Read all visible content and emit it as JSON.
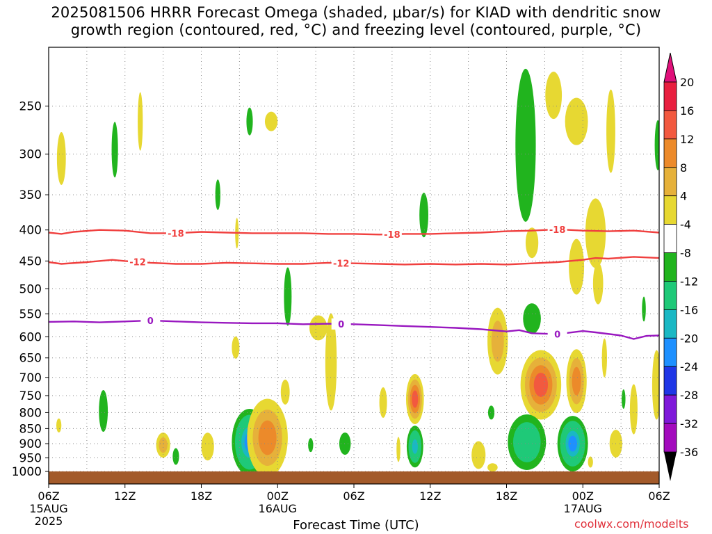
{
  "title": {
    "line1": "2025081506 HRRR Forecast Omega (shaded, μbar/s) for KIAD with dendritic snow",
    "line2": "growth region (contoured, red, °C) and freezing level (contoured, purple, °C)"
  },
  "credit": "coolwx.com/modelts",
  "chart_data": {
    "type": "heatmap",
    "xlabel": "Forecast Time (UTC)",
    "ylabel": "",
    "x_ticks": [
      {
        "hour": 0,
        "label": "06Z",
        "sub": [
          "15AUG",
          "2025"
        ]
      },
      {
        "hour": 6,
        "label": "12Z",
        "sub": []
      },
      {
        "hour": 12,
        "label": "18Z",
        "sub": []
      },
      {
        "hour": 18,
        "label": "00Z",
        "sub": [
          "16AUG"
        ]
      },
      {
        "hour": 24,
        "label": "06Z",
        "sub": []
      },
      {
        "hour": 30,
        "label": "12Z",
        "sub": []
      },
      {
        "hour": 36,
        "label": "18Z",
        "sub": []
      },
      {
        "hour": 42,
        "label": "00Z",
        "sub": [
          "17AUG"
        ]
      },
      {
        "hour": 48,
        "label": "06Z",
        "sub": []
      }
    ],
    "y_ticks": [
      250,
      300,
      350,
      400,
      450,
      500,
      550,
      600,
      650,
      700,
      750,
      800,
      850,
      900,
      950,
      1000
    ],
    "xlim_hours": [
      0,
      48
    ],
    "ylim_hPa": [
      1000,
      200
    ],
    "grid": true,
    "colorbar": {
      "labels": [
        "20",
        "16",
        "12",
        "8",
        "4",
        "-4",
        "-8",
        "-12",
        "-16",
        "-20",
        "-24",
        "-28",
        "-32",
        "-36"
      ],
      "bins": [
        {
          "color": "#e81f3f"
        },
        {
          "color": "#f2593f"
        },
        {
          "color": "#ec8a2a"
        },
        {
          "color": "#e6b13a"
        },
        {
          "color": "#e7d832"
        },
        {
          "color": "#ffffff"
        },
        {
          "color": "#21b41e"
        },
        {
          "color": "#1fc978"
        },
        {
          "color": "#1ab8c4"
        },
        {
          "color": "#1e90ff"
        },
        {
          "color": "#1f36e6"
        },
        {
          "color": "#7f19d9"
        },
        {
          "color": "#a30bbd"
        },
        {
          "color": "#9e9e9e"
        }
      ],
      "top_arrow_color": "#e0107a",
      "bottom_arrow_color": "#000000"
    },
    "contours": [
      {
        "label": "-18",
        "color": "#f0403f",
        "points": [
          [
            0,
            404
          ],
          [
            1,
            406
          ],
          [
            2,
            403
          ],
          [
            4,
            400
          ],
          [
            6,
            401
          ],
          [
            8,
            405
          ],
          [
            10,
            405
          ],
          [
            12,
            403
          ],
          [
            14,
            404
          ],
          [
            16,
            405
          ],
          [
            18,
            405
          ],
          [
            20,
            405
          ],
          [
            22,
            406
          ],
          [
            24,
            406
          ],
          [
            26,
            407
          ],
          [
            28,
            406
          ],
          [
            30,
            406
          ],
          [
            32,
            405
          ],
          [
            34,
            404
          ],
          [
            36,
            402
          ],
          [
            38,
            401
          ],
          [
            40,
            399
          ],
          [
            42,
            401
          ],
          [
            44,
            402
          ],
          [
            46,
            401
          ],
          [
            48,
            404
          ]
        ],
        "label_positions": [
          10,
          27,
          40
        ]
      },
      {
        "label": "-12",
        "color": "#f0403f",
        "points": [
          [
            0,
            452
          ],
          [
            1,
            455
          ],
          [
            3,
            452
          ],
          [
            5,
            448
          ],
          [
            6,
            450
          ],
          [
            8,
            453
          ],
          [
            10,
            455
          ],
          [
            12,
            455
          ],
          [
            14,
            453
          ],
          [
            16,
            454
          ],
          [
            18,
            455
          ],
          [
            20,
            455
          ],
          [
            22,
            453
          ],
          [
            24,
            454
          ],
          [
            26,
            455
          ],
          [
            28,
            456
          ],
          [
            30,
            455
          ],
          [
            32,
            456
          ],
          [
            34,
            455
          ],
          [
            36,
            456
          ],
          [
            38,
            454
          ],
          [
            40,
            452
          ],
          [
            42,
            448
          ],
          [
            43,
            445
          ],
          [
            44,
            446
          ],
          [
            46,
            443
          ],
          [
            48,
            445
          ]
        ],
        "label_positions": [
          7,
          23
        ]
      },
      {
        "label": "0",
        "color": "#9918c0",
        "points": [
          [
            0,
            567
          ],
          [
            2,
            566
          ],
          [
            4,
            568
          ],
          [
            6,
            566
          ],
          [
            8,
            564
          ],
          [
            10,
            566
          ],
          [
            12,
            568
          ],
          [
            14,
            569
          ],
          [
            16,
            570
          ],
          [
            18,
            570
          ],
          [
            20,
            572
          ],
          [
            22,
            571
          ],
          [
            24,
            572
          ],
          [
            26,
            574
          ],
          [
            28,
            576
          ],
          [
            30,
            578
          ],
          [
            32,
            580
          ],
          [
            34,
            583
          ],
          [
            36,
            588
          ],
          [
            37,
            585
          ],
          [
            38,
            592
          ],
          [
            40,
            594
          ],
          [
            42,
            587
          ],
          [
            43,
            590
          ],
          [
            45,
            597
          ],
          [
            46,
            605
          ],
          [
            47,
            598
          ],
          [
            48,
            597
          ]
        ],
        "label_positions": [
          8,
          23,
          40
        ]
      }
    ],
    "omega_features": [
      {
        "name": "up-cell-1",
        "t": 1.0,
        "p": 305,
        "value": 4
      },
      {
        "name": "up-cell-2",
        "t": 5.2,
        "p": 295,
        "value": -4
      },
      {
        "name": "up-cell-3",
        "t": 7.2,
        "p": 275,
        "value": 4
      },
      {
        "name": "up-cell-4",
        "t": 15.8,
        "p": 260,
        "value": -4
      },
      {
        "name": "up-cell-5",
        "t": 17.5,
        "p": 268,
        "value": 4
      },
      {
        "name": "up-cell-6",
        "t": 37.5,
        "p": 290,
        "value": -4
      },
      {
        "name": "up-cell-7",
        "t": 42.0,
        "p": 270,
        "value": 4
      },
      {
        "name": "up-cell-8",
        "t": 29.5,
        "p": 380,
        "value": -4
      },
      {
        "name": "core-1",
        "t": 15.8,
        "p": 895,
        "value": -20
      },
      {
        "name": "core-2",
        "t": 17.2,
        "p": 910,
        "value": 8
      },
      {
        "name": "core-3",
        "t": 28.8,
        "p": 760,
        "value": 16
      },
      {
        "name": "core-4",
        "t": 28.8,
        "p": 905,
        "value": -16
      },
      {
        "name": "core-5",
        "t": 38.7,
        "p": 720,
        "value": 12
      },
      {
        "name": "core-6",
        "t": 37.6,
        "p": 890,
        "value": -12
      },
      {
        "name": "core-7",
        "t": 41.5,
        "p": 710,
        "value": 8
      },
      {
        "name": "core-8",
        "t": 41.2,
        "p": 900,
        "value": -20
      }
    ]
  }
}
